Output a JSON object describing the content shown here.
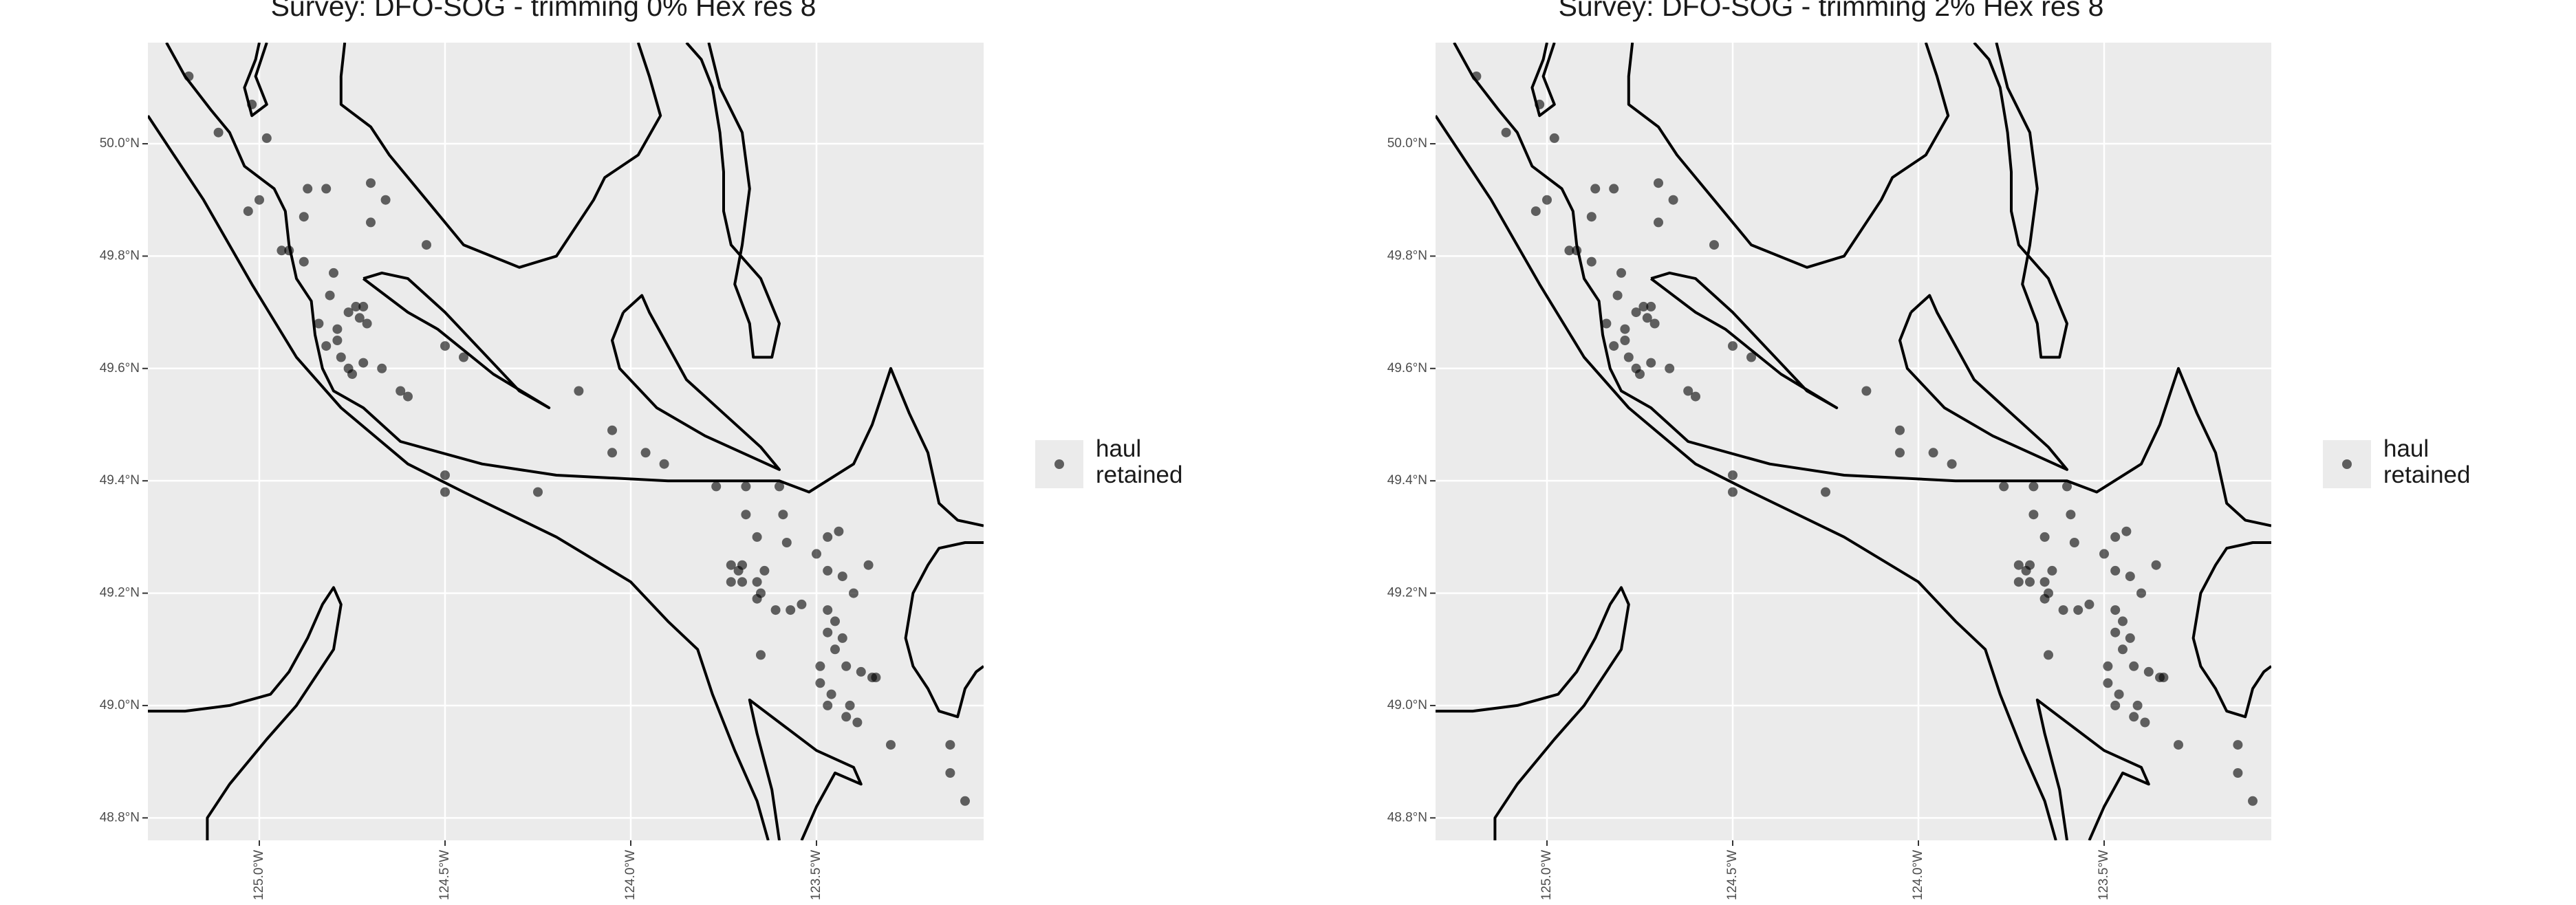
{
  "panels": [
    {
      "title": "Survey: DFO-SOG - trimming 0% Hex res 8"
    },
    {
      "title": "Survey: DFO-SOG - trimming 2% Hex res 8"
    }
  ],
  "axes": {
    "lon_range": [
      -125.3,
      -123.05
    ],
    "lat_range": [
      48.76,
      50.18
    ],
    "lat_ticks": [
      {
        "value": 50.0,
        "label": "50.0°N"
      },
      {
        "value": 49.8,
        "label": "49.8°N"
      },
      {
        "value": 49.6,
        "label": "49.6°N"
      },
      {
        "value": 49.4,
        "label": "49.4°N"
      },
      {
        "value": 49.2,
        "label": "49.2°N"
      },
      {
        "value": 49.0,
        "label": "49.0°N"
      },
      {
        "value": 48.8,
        "label": "48.8°N"
      }
    ],
    "lon_ticks": [
      {
        "value": -125.0,
        "label": "125.0°W"
      },
      {
        "value": -124.5,
        "label": "124.5°W"
      },
      {
        "value": -124.0,
        "label": "124.0°W"
      },
      {
        "value": -123.5,
        "label": "123.5°W"
      }
    ]
  },
  "legend": {
    "label": "haul\nretained",
    "point_color": "#000000",
    "point_opacity": 0.6
  },
  "colors": {
    "panel_bg": "#ebebeb",
    "grid": "#ffffff",
    "coast": "#000000"
  },
  "chart_data": {
    "type": "scatter",
    "x_is": "longitude",
    "y_is": "latitude",
    "points": [
      [
        -125.19,
        50.12
      ],
      [
        -125.02,
        50.07
      ],
      [
        -125.11,
        50.02
      ],
      [
        -124.98,
        50.01
      ],
      [
        -124.87,
        49.92
      ],
      [
        -124.82,
        49.92
      ],
      [
        -124.7,
        49.93
      ],
      [
        -124.66,
        49.9
      ],
      [
        -124.7,
        49.86
      ],
      [
        -125.0,
        49.9
      ],
      [
        -125.03,
        49.88
      ],
      [
        -124.88,
        49.87
      ],
      [
        -124.94,
        49.81
      ],
      [
        -124.92,
        49.81
      ],
      [
        -124.88,
        49.79
      ],
      [
        -124.8,
        49.77
      ],
      [
        -124.55,
        49.82
      ],
      [
        -124.81,
        49.73
      ],
      [
        -124.74,
        49.71
      ],
      [
        -124.72,
        49.71
      ],
      [
        -124.76,
        49.7
      ],
      [
        -124.73,
        49.69
      ],
      [
        -124.71,
        49.68
      ],
      [
        -124.84,
        49.68
      ],
      [
        -124.79,
        49.67
      ],
      [
        -124.79,
        49.65
      ],
      [
        -124.82,
        49.64
      ],
      [
        -124.78,
        49.62
      ],
      [
        -124.72,
        49.61
      ],
      [
        -124.76,
        49.6
      ],
      [
        -124.75,
        49.59
      ],
      [
        -124.67,
        49.6
      ],
      [
        -124.5,
        49.64
      ],
      [
        -124.45,
        49.62
      ],
      [
        -124.62,
        49.56
      ],
      [
        -124.6,
        49.55
      ],
      [
        -124.14,
        49.56
      ],
      [
        -124.05,
        49.49
      ],
      [
        -124.05,
        49.45
      ],
      [
        -123.96,
        49.45
      ],
      [
        -123.91,
        49.43
      ],
      [
        -124.5,
        49.41
      ],
      [
        -124.5,
        49.38
      ],
      [
        -124.25,
        49.38
      ],
      [
        -123.77,
        49.39
      ],
      [
        -123.69,
        49.39
      ],
      [
        -123.6,
        49.39
      ],
      [
        -123.69,
        49.34
      ],
      [
        -123.59,
        49.34
      ],
      [
        -123.66,
        49.3
      ],
      [
        -123.58,
        49.29
      ],
      [
        -123.47,
        49.3
      ],
      [
        -123.44,
        49.31
      ],
      [
        -123.5,
        49.27
      ],
      [
        -123.73,
        49.25
      ],
      [
        -123.7,
        49.25
      ],
      [
        -123.64,
        49.24
      ],
      [
        -123.71,
        49.24
      ],
      [
        -123.7,
        49.22
      ],
      [
        -123.66,
        49.22
      ],
      [
        -123.73,
        49.22
      ],
      [
        -123.65,
        49.2
      ],
      [
        -123.66,
        49.19
      ],
      [
        -123.61,
        49.17
      ],
      [
        -123.57,
        49.17
      ],
      [
        -123.54,
        49.18
      ],
      [
        -123.47,
        49.17
      ],
      [
        -123.45,
        49.15
      ],
      [
        -123.47,
        49.13
      ],
      [
        -123.43,
        49.12
      ],
      [
        -123.45,
        49.1
      ],
      [
        -123.4,
        49.2
      ],
      [
        -123.43,
        49.23
      ],
      [
        -123.36,
        49.25
      ],
      [
        -123.47,
        49.24
      ],
      [
        -123.65,
        49.09
      ],
      [
        -123.49,
        49.07
      ],
      [
        -123.42,
        49.07
      ],
      [
        -123.38,
        49.06
      ],
      [
        -123.35,
        49.05
      ],
      [
        -123.34,
        49.05
      ],
      [
        -123.49,
        49.04
      ],
      [
        -123.46,
        49.02
      ],
      [
        -123.47,
        49.0
      ],
      [
        -123.41,
        49.0
      ],
      [
        -123.42,
        48.98
      ],
      [
        -123.39,
        48.97
      ],
      [
        -123.3,
        48.93
      ],
      [
        -123.14,
        48.93
      ],
      [
        -123.14,
        48.88
      ],
      [
        -123.1,
        48.83
      ]
    ]
  }
}
